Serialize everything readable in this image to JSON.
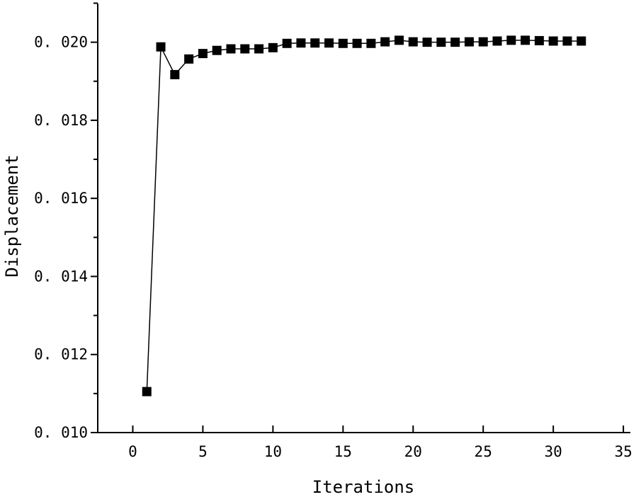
{
  "chart_data": {
    "type": "line",
    "title": "",
    "xlabel": "Iterations",
    "ylabel": "Displacement",
    "xlim": [
      -2.5,
      35.5
    ],
    "ylim": [
      0.01,
      0.0209
    ],
    "xticks": [
      0,
      5,
      10,
      15,
      20,
      25,
      30,
      35
    ],
    "xtick_labels": [
      "0",
      "5",
      "10",
      "15",
      "20",
      "25",
      "30",
      "35"
    ],
    "yticks": [
      0.01,
      0.012,
      0.014,
      0.016,
      0.018,
      0.02
    ],
    "ytick_labels": [
      "0. 010",
      "0. 012",
      "0. 014",
      "0. 016",
      "0. 018",
      "0. 020"
    ],
    "grid": false,
    "marker": "square",
    "color": "#000000",
    "series": [
      {
        "x": [
          1,
          2,
          3,
          4,
          5,
          6,
          7,
          8,
          9,
          10,
          11,
          12,
          13,
          14,
          15,
          16,
          17,
          18,
          19,
          20,
          21,
          22,
          23,
          24,
          25,
          26,
          27,
          28,
          29,
          30,
          31,
          32
        ],
        "y": [
          0.01105,
          0.01988,
          0.01917,
          0.01957,
          0.01971,
          0.01979,
          0.01983,
          0.01983,
          0.01983,
          0.01986,
          0.01997,
          0.01998,
          0.01998,
          0.01998,
          0.01997,
          0.01997,
          0.01997,
          0.02001,
          0.02005,
          0.02001,
          0.02,
          0.02,
          0.02,
          0.02001,
          0.02001,
          0.02003,
          0.02005,
          0.02005,
          0.02004,
          0.02003,
          0.02003,
          0.02003
        ]
      }
    ]
  }
}
